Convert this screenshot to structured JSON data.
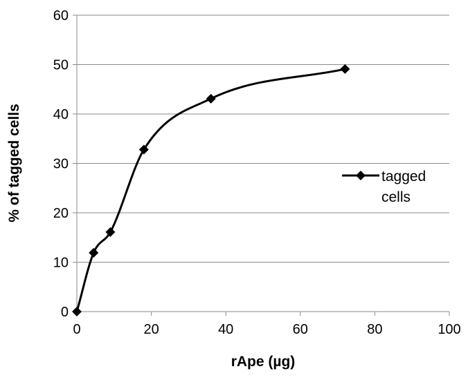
{
  "chart_data": {
    "type": "line",
    "title": "",
    "xlabel": "rApe (µg)",
    "ylabel": "% of tagged cells",
    "xlim": [
      0,
      100
    ],
    "ylim": [
      0,
      60
    ],
    "x_ticks": [
      0,
      20,
      40,
      60,
      80,
      100
    ],
    "y_ticks": [
      0,
      10,
      20,
      30,
      40,
      50,
      60
    ],
    "x_tick_labels": [
      "0",
      "20",
      "40",
      "60",
      "80",
      "100"
    ],
    "y_tick_labels": [
      "0",
      "10",
      "20",
      "30",
      "40",
      "50",
      "60"
    ],
    "grid": "horizontal",
    "legend_position": "right",
    "smooth": true,
    "marker": "diamond",
    "series": [
      {
        "name": "tagged cells",
        "legend_lines": [
          "tagged",
          "cells"
        ],
        "color": "#000000",
        "x": [
          0,
          4.5,
          9,
          18,
          36,
          72
        ],
        "y": [
          0,
          11.9,
          16.1,
          32.8,
          43.1,
          49.1
        ]
      }
    ]
  }
}
